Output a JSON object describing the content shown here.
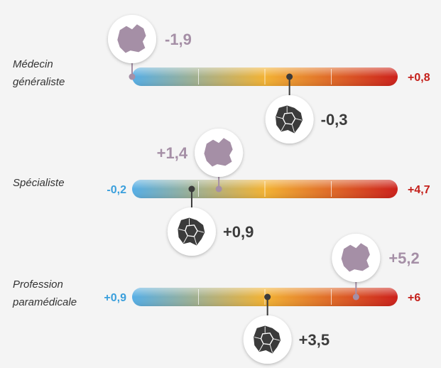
{
  "chart_data": {
    "type": "range-bar",
    "colors": {
      "cold": "#55aee6",
      "mid": "#f2b233",
      "hot": "#cc1f1a",
      "region": "#a58fa6",
      "local": "#3b3b3b",
      "neg_label": "#3a9fdc",
      "pos_label": "#c41e19"
    },
    "rows": [
      {
        "label_lines": [
          "Médecin",
          "généraliste"
        ],
        "min": -1.9,
        "max": 0.8,
        "min_label": "",
        "max_label": "+0,8",
        "region_value": -1.9,
        "region_label": "-1,9",
        "local_value": -0.3,
        "local_label": "-0,3"
      },
      {
        "label_lines": [
          "Spécialiste"
        ],
        "min": -0.2,
        "max": 4.7,
        "min_label": "-0,2",
        "max_label": "+4,7",
        "region_value": 1.4,
        "region_label": "+1,4",
        "local_value": 0.9,
        "local_label": "+0,9"
      },
      {
        "label_lines": [
          "Profession",
          "paramédicale"
        ],
        "min": 0.9,
        "max": 6.0,
        "min_label": "+0,9",
        "max_label": "+6",
        "region_value": 5.2,
        "region_label": "+5,2",
        "local_value": 3.5,
        "local_label": "+3,5"
      }
    ]
  }
}
